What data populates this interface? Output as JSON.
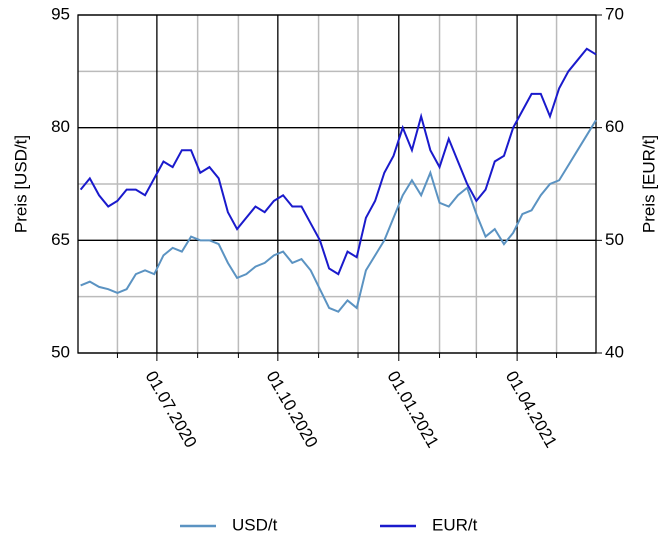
{
  "chart_data": {
    "type": "line",
    "ylabel": "Preis [USD/t]",
    "y2label": "Preis [EUR/t]",
    "x": [
      "2020-05-04",
      "2020-05-11",
      "2020-05-18",
      "2020-05-25",
      "2020-06-01",
      "2020-06-08",
      "2020-06-15",
      "2020-06-22",
      "2020-06-29",
      "2020-07-06",
      "2020-07-13",
      "2020-07-20",
      "2020-07-27",
      "2020-08-03",
      "2020-08-10",
      "2020-08-17",
      "2020-08-24",
      "2020-08-31",
      "2020-09-07",
      "2020-09-14",
      "2020-09-21",
      "2020-09-28",
      "2020-10-05",
      "2020-10-12",
      "2020-10-19",
      "2020-10-26",
      "2020-11-02",
      "2020-11-09",
      "2020-11-16",
      "2020-11-23",
      "2020-11-30",
      "2020-12-07",
      "2020-12-14",
      "2020-12-21",
      "2020-12-28",
      "2021-01-04",
      "2021-01-11",
      "2021-01-18",
      "2021-01-25",
      "2021-02-01",
      "2021-02-08",
      "2021-02-15",
      "2021-02-22",
      "2021-03-01",
      "2021-03-08",
      "2021-03-15",
      "2021-03-22",
      "2021-03-29",
      "2021-04-05",
      "2021-04-12",
      "2021-04-19",
      "2021-04-26",
      "2021-05-03",
      "2021-05-10",
      "2021-05-17",
      "2021-05-24",
      "2021-05-31"
    ],
    "series": [
      {
        "name": "USD/t",
        "color": "#5b93c2",
        "values": [
          59,
          59.5,
          58.8,
          58.5,
          58,
          58.5,
          60.5,
          61,
          60.5,
          63,
          64,
          63.5,
          65.5,
          65,
          65,
          64.5,
          62,
          60,
          60.5,
          61.5,
          62,
          63,
          63.5,
          62,
          62.5,
          61,
          58.5,
          56,
          55.5,
          57,
          56,
          61,
          63,
          65,
          68,
          71,
          73,
          71,
          74,
          70,
          69.5,
          71,
          72,
          68.5,
          65.5,
          66.5,
          64.5,
          66,
          68.5,
          69,
          71,
          72.5,
          73,
          75,
          77,
          79,
          81
        ]
      },
      {
        "name": "EUR/t",
        "color": "#1a1acc",
        "axis": "y2",
        "values": [
          54.5,
          55.5,
          54,
          53,
          53.5,
          54.5,
          54.5,
          54,
          55.5,
          57,
          56.5,
          58,
          58,
          56,
          56.5,
          55.5,
          52.5,
          51,
          52,
          53,
          52.5,
          53.5,
          54,
          53,
          53,
          51.5,
          50,
          47.5,
          47,
          49,
          48.5,
          52,
          53.5,
          56,
          57.5,
          60,
          58,
          61,
          58,
          56.5,
          59,
          57,
          55,
          53.5,
          54.5,
          57,
          57.5,
          60,
          61.5,
          63,
          63,
          61,
          63.5,
          65,
          66,
          67,
          66.5
        ]
      }
    ],
    "xlim": [
      "2020-05-02",
      "2021-05-31"
    ],
    "xticks": [
      {
        "value": "2020-07-01",
        "label": "01.07.2020"
      },
      {
        "value": "2020-10-01",
        "label": "01.10.2020"
      },
      {
        "value": "2021-01-01",
        "label": "01.01.2021"
      },
      {
        "value": "2021-04-01",
        "label": "01.04.2021"
      }
    ],
    "xminor": [
      "2020-06-01",
      "2020-08-01",
      "2020-09-01",
      "2020-11-01",
      "2020-12-01",
      "2021-02-01",
      "2021-03-01",
      "2021-05-01"
    ],
    "ylim": [
      50,
      95
    ],
    "yticks": [
      50,
      65,
      80,
      95
    ],
    "yminor": [
      57.5,
      72.5,
      87.5
    ],
    "y2lim": [
      40,
      70
    ],
    "y2ticks": [
      40,
      50,
      60,
      70
    ],
    "grid": true,
    "legend": "bottom"
  }
}
